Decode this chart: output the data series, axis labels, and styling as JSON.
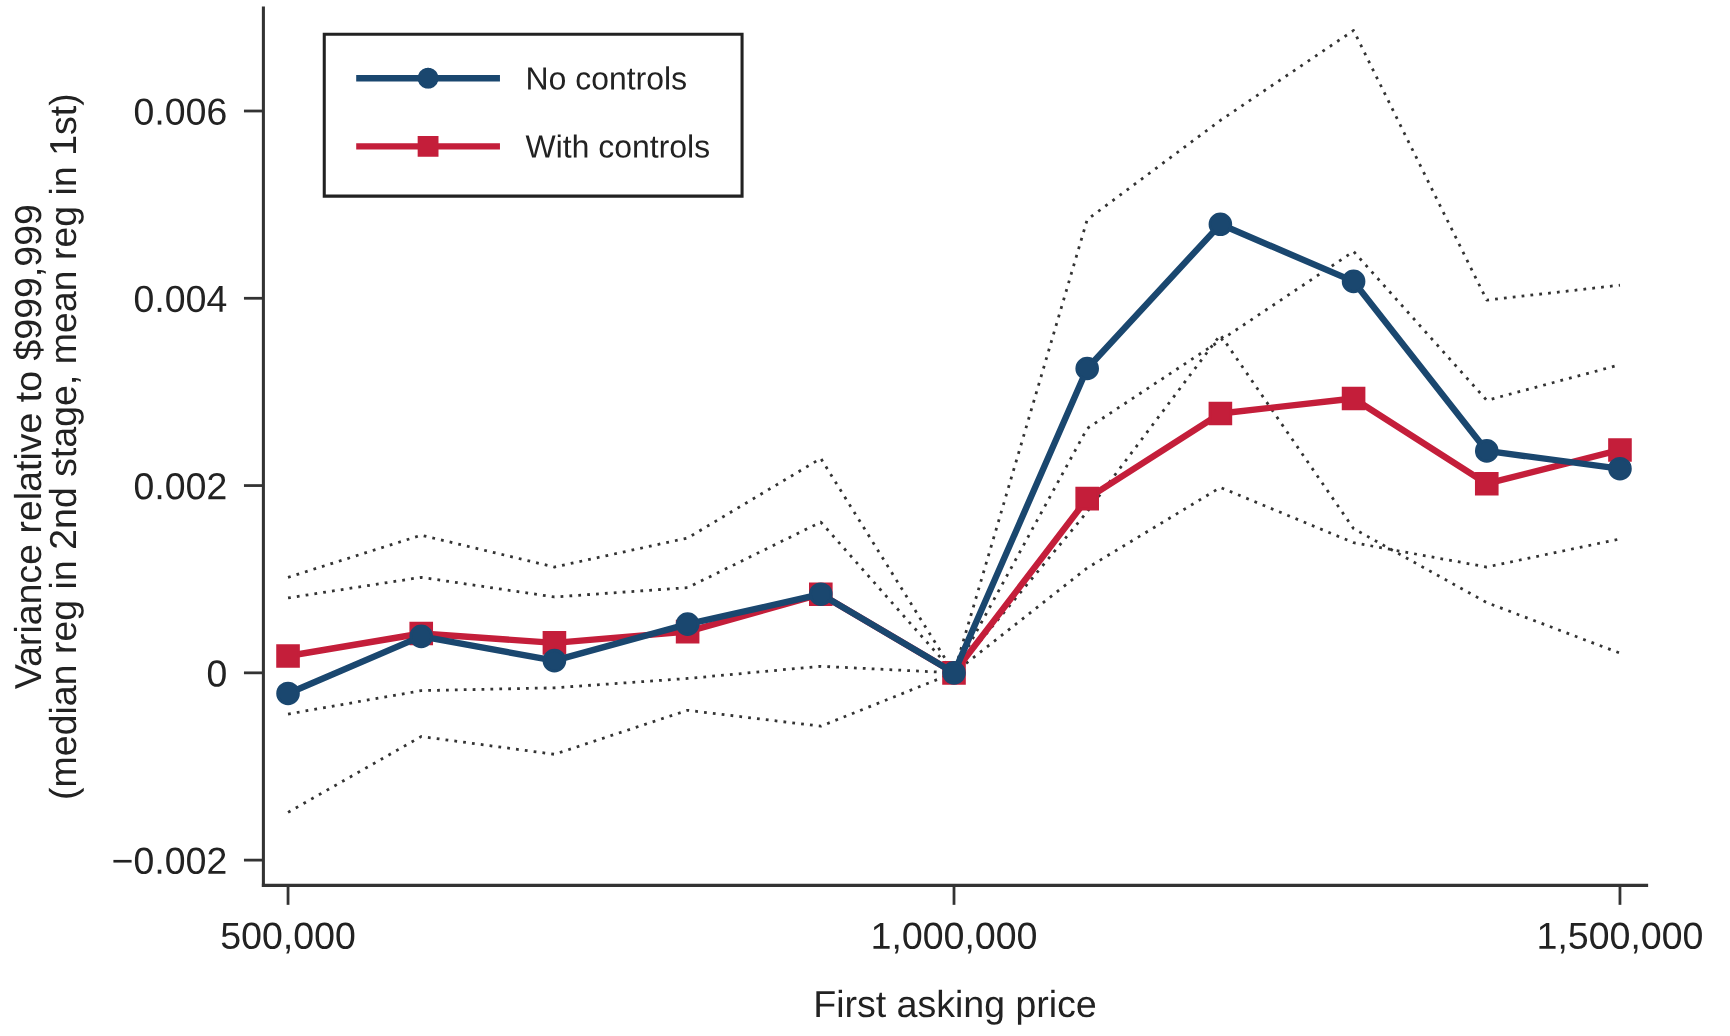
{
  "chart_data": {
    "type": "line",
    "xlabel": "First asking price",
    "ylabel": "Variance relative to $999,999\n(median reg in 2nd stage, mean reg in 1st)",
    "x": [
      500000,
      600000,
      700000,
      800000,
      900000,
      1000000,
      1100000,
      1200000,
      1300000,
      1400000,
      1500000
    ],
    "xlim": [
      481500,
      1520000
    ],
    "xticks": [
      {
        "value": 500000,
        "label": "500,000"
      },
      {
        "value": 1000000,
        "label": "1,000,000"
      },
      {
        "value": 1500000,
        "label": "1,500,000"
      }
    ],
    "ylim": [
      -0.00227,
      0.0071
    ],
    "yticks": [
      {
        "value": -0.002,
        "label": "−0.002"
      },
      0,
      0.002,
      0.004,
      0.006
    ],
    "legend": "top left",
    "grid": false,
    "series": [
      {
        "name": "No controls",
        "color": "#1a476f",
        "marker": "circle",
        "line_style": "solid",
        "values": [
          -0.00022,
          0.00039,
          0.00013,
          0.00052,
          0.00084,
          0,
          0.00325,
          0.00479,
          0.00418,
          0.00237,
          0.00218
        ]
      },
      {
        "name": "With controls",
        "color": "#c41e3a",
        "marker": "square",
        "line_style": "solid",
        "values": [
          0.00018,
          0.00042,
          0.00032,
          0.00044,
          0.00084,
          0,
          0.00186,
          0.00277,
          0.00293,
          0.00202,
          0.00238
        ]
      },
      {
        "color": "#333333",
        "marker": "none",
        "line_style": "dotted",
        "values": [
          0.00102,
          0.00147,
          0.00113,
          0.00144,
          0.00229,
          0,
          0.00484,
          0.0059,
          0.00686,
          0.00398,
          0.00414
        ]
      },
      {
        "color": "#333333",
        "marker": "none",
        "line_style": "dotted",
        "values": [
          -0.00149,
          -0.00068,
          -0.00087,
          -0.0004,
          -0.00057,
          0,
          0.00172,
          0.00361,
          0.00154,
          0.00075,
          0.00021
        ]
      },
      {
        "color": "#333333",
        "marker": "none",
        "line_style": "dotted",
        "values": [
          0.0008,
          0.00102,
          0.00081,
          0.00091,
          0.00161,
          0,
          0.00261,
          0.00355,
          0.0045,
          0.00291,
          0.00329
        ]
      },
      {
        "color": "#333333",
        "marker": "none",
        "line_style": "dotted",
        "values": [
          -0.00044,
          -0.00019,
          -0.00016,
          -6e-05,
          7e-05,
          0,
          0.00112,
          0.00198,
          0.00139,
          0.00113,
          0.00143
        ]
      }
    ]
  }
}
